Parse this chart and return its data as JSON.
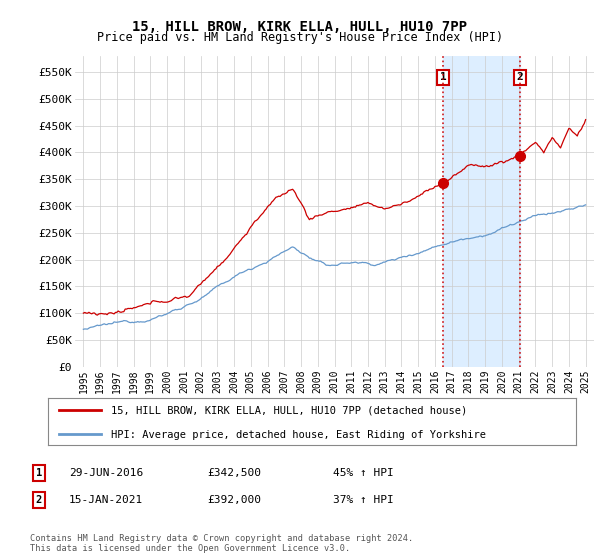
{
  "title": "15, HILL BROW, KIRK ELLA, HULL, HU10 7PP",
  "subtitle": "Price paid vs. HM Land Registry's House Price Index (HPI)",
  "ylabel_ticks": [
    "£0",
    "£50K",
    "£100K",
    "£150K",
    "£200K",
    "£250K",
    "£300K",
    "£350K",
    "£400K",
    "£450K",
    "£500K",
    "£550K"
  ],
  "ytick_values": [
    0,
    50000,
    100000,
    150000,
    200000,
    250000,
    300000,
    350000,
    400000,
    450000,
    500000,
    550000
  ],
  "ylim": [
    0,
    580000
  ],
  "red_color": "#cc0000",
  "blue_color": "#6699cc",
  "shade_color": "#ddeeff",
  "year1": 2016.5,
  "year2": 2021.08,
  "val1_red": 342500,
  "val2_red": 392000,
  "legend_line1": "15, HILL BROW, KIRK ELLA, HULL, HU10 7PP (detached house)",
  "legend_line2": "HPI: Average price, detached house, East Riding of Yorkshire",
  "footer": "Contains HM Land Registry data © Crown copyright and database right 2024.\nThis data is licensed under the Open Government Licence v3.0.",
  "background_color": "#ffffff",
  "grid_color": "#cccccc"
}
